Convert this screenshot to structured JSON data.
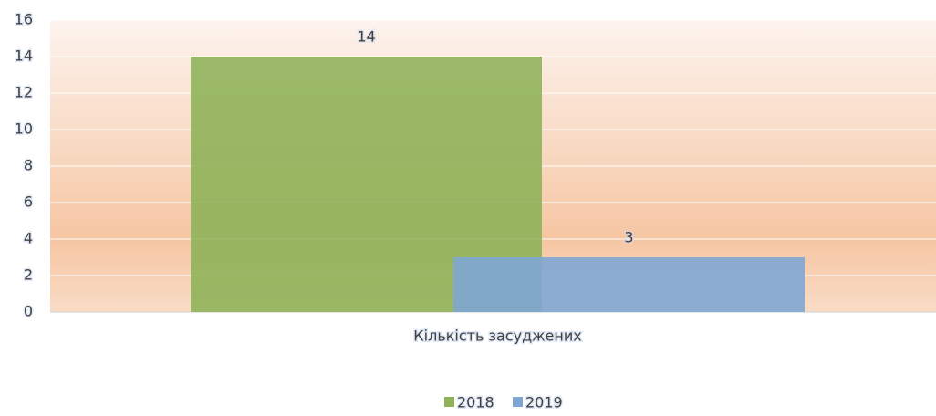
{
  "chart_data": {
    "type": "bar",
    "categories": [
      "Кількість засуджених"
    ],
    "series": [
      {
        "name": "2018",
        "color": "#8fb35a",
        "values": [
          14
        ]
      },
      {
        "name": "2019",
        "color": "#7fa6d3",
        "values": [
          3
        ]
      }
    ],
    "ylim": [
      0,
      16
    ],
    "yticks": [
      0,
      2,
      4,
      6,
      8,
      10,
      12,
      14,
      16
    ],
    "grid": true,
    "legend": "bottom"
  }
}
